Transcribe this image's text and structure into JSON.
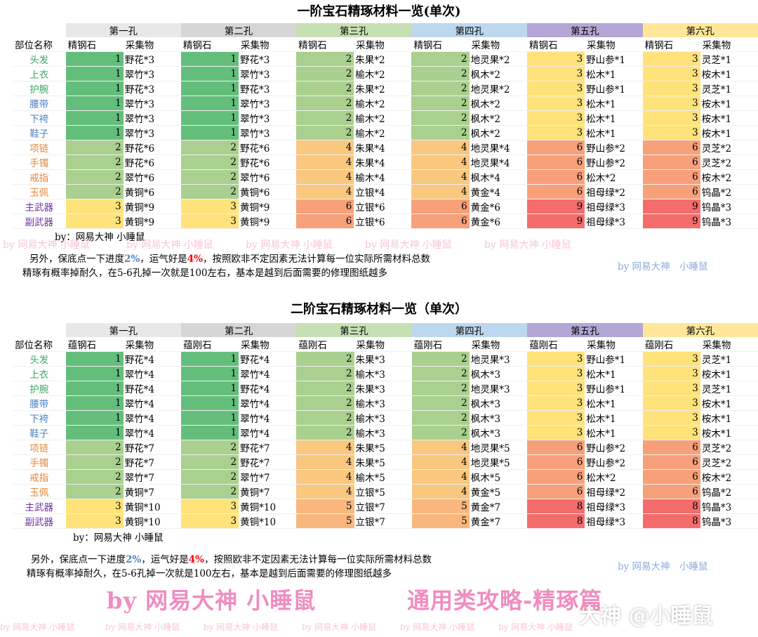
{
  "tables": [
    {
      "title": "一阶宝石精琢材料一览(单次)",
      "holes": [
        "第一孔",
        "第二孔",
        "第三孔",
        "第四孔",
        "第五孔",
        "第六孔"
      ],
      "header": [
        "部位名称",
        "精钢石",
        "采集物",
        "精钢石",
        "采集物",
        "精钢石",
        "采集物",
        "精钢石",
        "采集物",
        "精钢石",
        "采集物",
        "精钢石",
        "采集物"
      ],
      "rows": [
        {
          "part": "头发",
          "cells": [
            "1",
            "野花*3",
            "1",
            "野花*3",
            "2",
            "朱果*2",
            "2",
            "地灵果*2",
            "3",
            "野山参*1",
            "3",
            "灵芝*1"
          ]
        },
        {
          "part": "上衣",
          "cells": [
            "1",
            "翠竹*3",
            "1",
            "翠竹*3",
            "2",
            "榆木*2",
            "2",
            "枫木*2",
            "3",
            "松木*1",
            "3",
            "桉木*1"
          ]
        },
        {
          "part": "护腕",
          "cells": [
            "1",
            "野花*3",
            "1",
            "野花*3",
            "2",
            "朱果*2",
            "2",
            "地灵果*2",
            "3",
            "野山参*1",
            "3",
            "灵芝*1"
          ]
        },
        {
          "part": "腰带",
          "cells": [
            "1",
            "翠竹*3",
            "1",
            "翠竹*3",
            "2",
            "榆木*2",
            "2",
            "枫木*2",
            "3",
            "松木*1",
            "3",
            "桉木*1"
          ]
        },
        {
          "part": "下袴",
          "cells": [
            "1",
            "翠竹*3",
            "1",
            "翠竹*3",
            "2",
            "榆木*2",
            "2",
            "枫木*2",
            "3",
            "松木*1",
            "3",
            "桉木*1"
          ]
        },
        {
          "part": "鞋子",
          "cells": [
            "1",
            "翠竹*3",
            "1",
            "翠竹*3",
            "2",
            "榆木*2",
            "2",
            "枫木*2",
            "3",
            "松木*1",
            "3",
            "桉木*1"
          ]
        },
        {
          "part": "项链",
          "cells": [
            "2",
            "野花*6",
            "2",
            "野花*6",
            "4",
            "朱果*4",
            "4",
            "地灵果*4",
            "6",
            "野山参*2",
            "6",
            "灵芝*2"
          ]
        },
        {
          "part": "手镯",
          "cells": [
            "2",
            "野花*6",
            "2",
            "野花*6",
            "4",
            "朱果*4",
            "4",
            "地灵果*4",
            "6",
            "野山参*2",
            "6",
            "灵芝*2"
          ]
        },
        {
          "part": "戒指",
          "cells": [
            "2",
            "翠竹*6",
            "2",
            "翠竹*6",
            "4",
            "榆木*4",
            "4",
            "枫木*4",
            "6",
            "松木*2",
            "6",
            "桉木*2"
          ]
        },
        {
          "part": "玉佩",
          "cells": [
            "2",
            "黄铜*6",
            "2",
            "黄铜*6",
            "4",
            "立银*4",
            "4",
            "黄金*4",
            "6",
            "祖母绿*2",
            "6",
            "钨晶*2"
          ]
        },
        {
          "part": "主武器",
          "cells": [
            "3",
            "黄铜*9",
            "3",
            "黄铜*9",
            "6",
            "立银*6",
            "6",
            "黄金*6",
            "9",
            "祖母绿*3",
            "9",
            "钨晶*3"
          ]
        },
        {
          "part": "副武器",
          "cells": [
            "3",
            "黄铜*9",
            "3",
            "黄铜*9",
            "6",
            "立银*6",
            "6",
            "黄金*6",
            "9",
            "祖母绿*3",
            "9",
            "钨晶*3"
          ]
        }
      ],
      "byline": "by：网易大神 小睡鼠",
      "note1_a": "另外，保底点一下进度",
      "note1_pct1": "2%",
      "note1_b": "，运气好是",
      "note1_pct2": "4%",
      "note1_c": "，按照欧非不定因素无法计算每一位实际所需材料总数",
      "note2": "精琢有概率掉耐久，在5-6孔掉一次就是100左右，基本是越到后面需要的修理图纸越多",
      "by_blue": "by 网易大神　小睡鼠"
    },
    {
      "title": "二阶宝石精琢材料一览（单次）",
      "holes": [
        "第一孔",
        "第二孔",
        "第三孔",
        "第四孔",
        "第五孔",
        "第六孔"
      ],
      "header": [
        "部位名称",
        "蕴钢石",
        "采集物",
        "蕴刚石",
        "采集物",
        "蕴刚石",
        "采集物",
        "蕴刚石",
        "采集物",
        "蕴刚石",
        "采集物",
        "蕴刚石",
        "采集物"
      ],
      "rows": [
        {
          "part": "头发",
          "cells": [
            "1",
            "野花*4",
            "1",
            "野花*4",
            "2",
            "朱果*3",
            "2",
            "地灵果*3",
            "3",
            "野山参*1",
            "3",
            "灵芝*1"
          ]
        },
        {
          "part": "上衣",
          "cells": [
            "1",
            "翠竹*4",
            "1",
            "翠竹*4",
            "2",
            "榆木*3",
            "2",
            "枫木*3",
            "3",
            "松木*1",
            "3",
            "桉木*1"
          ]
        },
        {
          "part": "护腕",
          "cells": [
            "1",
            "野花*4",
            "1",
            "野花*4",
            "2",
            "朱果*3",
            "2",
            "地灵果*3",
            "3",
            "野山参*1",
            "3",
            "灵芝*1"
          ]
        },
        {
          "part": "腰带",
          "cells": [
            "1",
            "翠竹*4",
            "1",
            "翠竹*4",
            "2",
            "榆木*3",
            "2",
            "枫木*3",
            "3",
            "松木*1",
            "3",
            "桉木*1"
          ]
        },
        {
          "part": "下袴",
          "cells": [
            "1",
            "翠竹*4",
            "1",
            "翠竹*4",
            "2",
            "榆木*3",
            "2",
            "枫木*3",
            "3",
            "松木*1",
            "3",
            "桉木*1"
          ]
        },
        {
          "part": "鞋子",
          "cells": [
            "1",
            "翠竹*4",
            "1",
            "翠竹*4",
            "2",
            "榆木*3",
            "2",
            "枫木*3",
            "3",
            "松木*1",
            "3",
            "桉木*1"
          ]
        },
        {
          "part": "项链",
          "cells": [
            "2",
            "野花*7",
            "2",
            "野花*7",
            "4",
            "朱果*5",
            "4",
            "地灵果*5",
            "6",
            "野山参*2",
            "6",
            "灵芝*2"
          ]
        },
        {
          "part": "手镯",
          "cells": [
            "2",
            "野花*7",
            "2",
            "野花*7",
            "4",
            "朱果*5",
            "4",
            "地灵果*5",
            "6",
            "野山参*2",
            "6",
            "灵芝*2"
          ]
        },
        {
          "part": "戒指",
          "cells": [
            "2",
            "翠竹*7",
            "2",
            "翠竹*7",
            "4",
            "榆木*5",
            "4",
            "枫木*5",
            "6",
            "松木*2",
            "6",
            "桉木*2"
          ]
        },
        {
          "part": "玉佩",
          "cells": [
            "2",
            "黄铜*7",
            "2",
            "黄铜*7",
            "4",
            "立银*5",
            "4",
            "黄金*5",
            "6",
            "祖母绿*2",
            "6",
            "钨晶*2"
          ]
        },
        {
          "part": "主武器",
          "cells": [
            "3",
            "黄铜*10",
            "3",
            "黄铜*10",
            "5",
            "立银*7",
            "5",
            "黄金*7",
            "8",
            "祖母绿*3",
            "8",
            "钨晶*3"
          ]
        },
        {
          "part": "副武器",
          "cells": [
            "3",
            "黄铜*10",
            "3",
            "黄铜*10",
            "5",
            "立银*7",
            "5",
            "黄金*7",
            "8",
            "祖母绿*3",
            "8",
            "钨晶*3"
          ]
        }
      ],
      "byline": "by：网易大神 小睡鼠",
      "note1_a": "另外，保底点一下进度",
      "note1_pct1": "2%",
      "note1_b": "，运气好是",
      "note1_pct2": "4%",
      "note1_c": "，按照欧非不定因素无法计算每一位实际所需材料总数",
      "note2": "精琢有概率掉耐久，在5-6孔掉一次就是100左右，基本是越到后面需要的修理图纸越多",
      "by_blue": "by 网易大神　小睡鼠"
    }
  ],
  "banner_left": "by 网易大神 小睡鼠",
  "banner_right": "通用类攻略-精琢篇",
  "weibo_mark": "大神 @小睡鼠",
  "watermark_text": "by 网易大神 小睡鼠",
  "colors": {
    "hole_headers": [
      "#e8e8e8",
      "#d6d6d6",
      "#c6e0b4",
      "#bdd7ee",
      "#b4a7d6",
      "#ffe699"
    ],
    "part_colors": [
      "#3aa866",
      "#3aa866",
      "#3aa866",
      "#4f81bd",
      "#4f81bd",
      "#4f81bd",
      "#e5883a",
      "#e5883a",
      "#e5883a",
      "#e5883a",
      "#7030a0",
      "#7030a0"
    ],
    "heat": {
      "1": "#63be7b",
      "2": "#a9d08e",
      "3": "#ffe27a",
      "4": "#f9c77e",
      "5": "#f8a77a",
      "6": "#f8a07a",
      "8": "#f46c6c",
      "9": "#f46c6c"
    },
    "heat_t2": {
      "1": "#63be7b",
      "2": "#a9d08e",
      "3": "#ffe27a",
      "4": "#f9c77e",
      "5": "#f9b77e",
      "6": "#f8a07a",
      "8": "#f46c6c"
    }
  }
}
